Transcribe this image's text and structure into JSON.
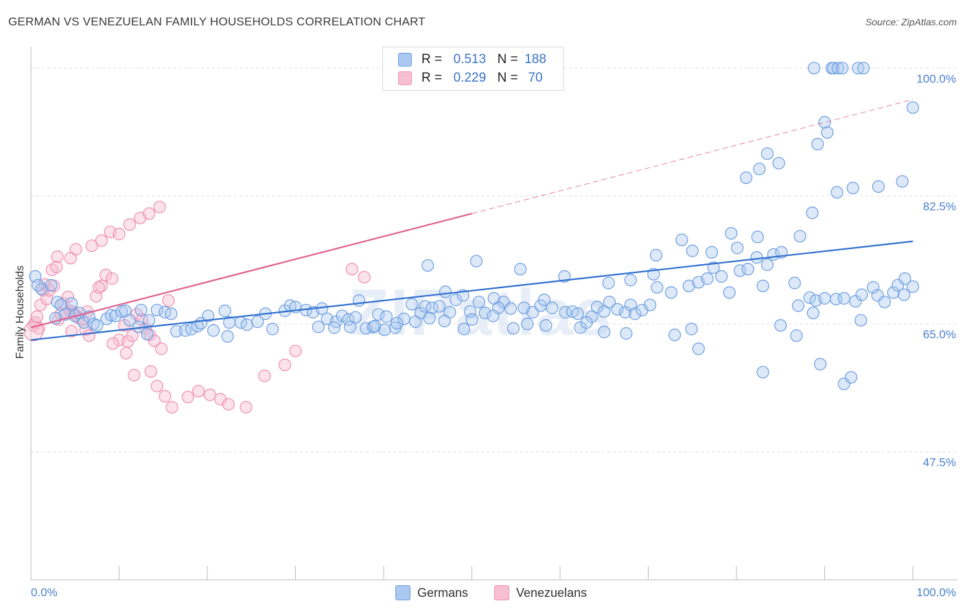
{
  "title": "GERMAN VS VENEZUELAN FAMILY HOUSEHOLDS CORRELATION CHART",
  "source": "Source: ZipAtlas.com",
  "watermark": "ZIPatlas",
  "legend": {
    "german": {
      "r_label": "R =",
      "r_value": "0.513",
      "n_label": "N =",
      "n_value": "188"
    },
    "venezuelan": {
      "r_label": "R =",
      "r_value": "0.229",
      "n_label": "N =",
      "n_value": "70"
    }
  },
  "colors": {
    "german": "#6b9de0",
    "german_fill": "#aac8f0",
    "german_line": "#2f6fd0",
    "venezuelan": "#f08db0",
    "venezuelan_fill": "#f6bfd2",
    "venezuelan_line": "#e0608c",
    "tick": "#4a7fcf"
  },
  "chart_data": {
    "type": "scatter",
    "title": "GERMAN VS VENEZUELAN FAMILY HOUSEHOLDS CORRELATION CHART",
    "xlabel": "",
    "ylabel": "Family Households",
    "xlim": [
      0,
      100
    ],
    "ylim": [
      30,
      102
    ],
    "x_tick_labels": [
      "0.0%",
      "100.0%"
    ],
    "y_ticks": [
      47.5,
      65.0,
      82.5,
      100.0
    ],
    "y_tick_labels": [
      "47.5%",
      "65.0%",
      "82.5%",
      "100.0%"
    ],
    "grid": true,
    "legend_position": "top-center",
    "series": [
      {
        "name": "Germans",
        "r": 0.513,
        "n": 188,
        "trend": {
          "x0": 0,
          "y0": 62.8,
          "x1": 100,
          "y1": 76.3
        },
        "points": [
          [
            0.5,
            71.5
          ],
          [
            0.8,
            70.3
          ],
          [
            1.2,
            69.8
          ],
          [
            2.3,
            70.3
          ],
          [
            3.0,
            68.0
          ],
          [
            2.8,
            65.8
          ],
          [
            3.4,
            67.6
          ],
          [
            3.9,
            66.3
          ],
          [
            4.6,
            67.8
          ],
          [
            5.0,
            66.1
          ],
          [
            5.5,
            66.5
          ],
          [
            6.0,
            65.2
          ],
          [
            6.6,
            66.0
          ],
          [
            7.1,
            65.0
          ],
          [
            7.5,
            64.8
          ],
          [
            8.6,
            65.7
          ],
          [
            9.1,
            66.2
          ],
          [
            9.6,
            66.1
          ],
          [
            10.3,
            66.7
          ],
          [
            10.7,
            66.8
          ],
          [
            11.2,
            65.5
          ],
          [
            12.5,
            66.9
          ],
          [
            12.2,
            64.6
          ],
          [
            13.4,
            65.5
          ],
          [
            14.3,
            66.9
          ],
          [
            13.2,
            63.6
          ],
          [
            15.2,
            66.6
          ],
          [
            15.9,
            66.4
          ],
          [
            16.5,
            64.0
          ],
          [
            17.5,
            64.1
          ],
          [
            18.2,
            64.3
          ],
          [
            18.9,
            64.7
          ],
          [
            19.3,
            65.1
          ],
          [
            20.1,
            66.1
          ],
          [
            20.7,
            64.1
          ],
          [
            22.0,
            66.8
          ],
          [
            22.5,
            65.2
          ],
          [
            22.3,
            63.3
          ],
          [
            23.8,
            65.2
          ],
          [
            24.5,
            64.9
          ],
          [
            25.7,
            65.3
          ],
          [
            26.6,
            66.4
          ],
          [
            27.4,
            64.3
          ],
          [
            28.8,
            66.8
          ],
          [
            29.4,
            67.5
          ],
          [
            30.0,
            67.3
          ],
          [
            31.2,
            66.9
          ],
          [
            32.0,
            66.6
          ],
          [
            33.0,
            67.1
          ],
          [
            33.6,
            65.7
          ],
          [
            34.6,
            65.3
          ],
          [
            35.3,
            66.1
          ],
          [
            36.0,
            65.6
          ],
          [
            36.8,
            65.9
          ],
          [
            37.2,
            68.2
          ],
          [
            38.0,
            64.4
          ],
          [
            38.8,
            64.6
          ],
          [
            39.4,
            66.3
          ],
          [
            40.3,
            66.0
          ],
          [
            41.3,
            64.5
          ],
          [
            42.3,
            65.7
          ],
          [
            43.2,
            67.7
          ],
          [
            44.2,
            66.5
          ],
          [
            44.7,
            67.4
          ],
          [
            45.5,
            67.2
          ],
          [
            46.3,
            67.4
          ],
          [
            47.0,
            69.4
          ],
          [
            47.5,
            66.6
          ],
          [
            48.2,
            68.3
          ],
          [
            49.0,
            68.9
          ],
          [
            49.8,
            66.7
          ],
          [
            50.8,
            68.0
          ],
          [
            51.5,
            66.5
          ],
          [
            52.5,
            68.5
          ],
          [
            53.6,
            68.0
          ],
          [
            53.0,
            67.2
          ],
          [
            54.4,
            67.1
          ],
          [
            55.9,
            67.2
          ],
          [
            56.9,
            66.6
          ],
          [
            57.8,
            67.5
          ],
          [
            58.2,
            68.3
          ],
          [
            59.1,
            67.2
          ],
          [
            60.6,
            66.6
          ],
          [
            61.4,
            66.7
          ],
          [
            62.0,
            66.4
          ],
          [
            62.3,
            64.5
          ],
          [
            63.6,
            66.0
          ],
          [
            64.2,
            67.3
          ],
          [
            65.0,
            66.7
          ],
          [
            65.6,
            68.0
          ],
          [
            66.5,
            67.0
          ],
          [
            67.4,
            66.6
          ],
          [
            68.0,
            67.6
          ],
          [
            68.5,
            66.4
          ],
          [
            69.3,
            66.9
          ],
          [
            70.2,
            67.6
          ],
          [
            71.0,
            70.0
          ],
          [
            72.6,
            69.3
          ],
          [
            74.6,
            70.2
          ],
          [
            75.7,
            70.7
          ],
          [
            76.7,
            71.2
          ],
          [
            77.4,
            72.7
          ],
          [
            78.3,
            71.5
          ],
          [
            79.2,
            69.3
          ],
          [
            80.4,
            72.3
          ],
          [
            81.3,
            72.5
          ],
          [
            82.3,
            74.1
          ],
          [
            83.0,
            70.2
          ],
          [
            83.5,
            73.1
          ],
          [
            84.2,
            74.5
          ],
          [
            85.1,
            74.8
          ],
          [
            86.6,
            70.6
          ],
          [
            87.0,
            67.5
          ],
          [
            88.3,
            68.6
          ],
          [
            89.0,
            68.2
          ],
          [
            88.7,
            66.5
          ],
          [
            90.0,
            68.5
          ],
          [
            91.3,
            68.4
          ],
          [
            92.2,
            68.5
          ],
          [
            93.5,
            68.1
          ],
          [
            94.2,
            69.0
          ],
          [
            95.5,
            70.0
          ],
          [
            96.0,
            68.9
          ],
          [
            96.8,
            68.0
          ],
          [
            97.8,
            69.3
          ],
          [
            99.0,
            69.0
          ],
          [
            100.0,
            70.1
          ],
          [
            45.0,
            73.0
          ],
          [
            50.5,
            73.6
          ],
          [
            55.5,
            72.5
          ],
          [
            60.5,
            71.5
          ],
          [
            65.5,
            70.6
          ],
          [
            70.6,
            71.8
          ],
          [
            75.0,
            75.0
          ],
          [
            68.0,
            71.0
          ],
          [
            73.8,
            76.5
          ],
          [
            77.2,
            74.8
          ],
          [
            79.4,
            77.4
          ],
          [
            82.4,
            76.9
          ],
          [
            87.2,
            77.0
          ],
          [
            80.1,
            75.4
          ],
          [
            70.9,
            74.4
          ],
          [
            88.6,
            80.2
          ],
          [
            91.4,
            83.0
          ],
          [
            93.2,
            83.6
          ],
          [
            96.1,
            83.8
          ],
          [
            98.8,
            84.5
          ],
          [
            82.6,
            86.2
          ],
          [
            81.1,
            85.0
          ],
          [
            84.8,
            87.0
          ],
          [
            83.5,
            88.3
          ],
          [
            89.2,
            89.6
          ],
          [
            90.3,
            91.2
          ],
          [
            90.0,
            92.6
          ],
          [
            100.0,
            94.6
          ],
          [
            88.8,
            100.0
          ],
          [
            90.8,
            100.0
          ],
          [
            91.0,
            100.0
          ],
          [
            91.5,
            100.0
          ],
          [
            92.0,
            100.0
          ],
          [
            93.8,
            100.0
          ],
          [
            94.4,
            100.0
          ],
          [
            98.3,
            70.3
          ],
          [
            99.1,
            71.2
          ],
          [
            94.1,
            65.5
          ],
          [
            85.0,
            64.8
          ],
          [
            86.8,
            63.4
          ],
          [
            89.5,
            59.5
          ],
          [
            92.2,
            56.8
          ],
          [
            93.0,
            57.7
          ],
          [
            83.0,
            58.4
          ],
          [
            75.7,
            61.6
          ],
          [
            74.9,
            64.3
          ],
          [
            73.0,
            63.5
          ],
          [
            67.5,
            63.7
          ],
          [
            65.0,
            63.9
          ],
          [
            63.0,
            65.2
          ],
          [
            58.4,
            64.8
          ],
          [
            56.3,
            65.0
          ],
          [
            54.7,
            64.4
          ],
          [
            52.4,
            66.1
          ],
          [
            50.0,
            65.6
          ],
          [
            49.1,
            64.3
          ],
          [
            46.9,
            65.4
          ],
          [
            45.2,
            65.8
          ],
          [
            43.6,
            65.3
          ],
          [
            41.5,
            65.1
          ],
          [
            40.1,
            64.2
          ],
          [
            39.0,
            64.7
          ],
          [
            36.2,
            64.6
          ],
          [
            34.4,
            64.5
          ],
          [
            32.6,
            64.6
          ]
        ]
      },
      {
        "name": "Venezuelans",
        "r": 0.229,
        "n": 70,
        "trend": {
          "x0": 0,
          "y0": 64.5,
          "x1": 100,
          "y1": 95.7
        },
        "points": [
          [
            0.3,
            64.8
          ],
          [
            0.5,
            65.2
          ],
          [
            0.7,
            66.0
          ],
          [
            0.9,
            64.4
          ],
          [
            1.1,
            67.6
          ],
          [
            1.4,
            69.6
          ],
          [
            1.6,
            70.4
          ],
          [
            1.8,
            68.4
          ],
          [
            2.1,
            69.6
          ],
          [
            2.4,
            72.4
          ],
          [
            2.6,
            70.2
          ],
          [
            2.9,
            72.8
          ],
          [
            3.1,
            65.6
          ],
          [
            3.4,
            66.4
          ],
          [
            3.7,
            67.8
          ],
          [
            4.2,
            68.7
          ],
          [
            4.4,
            66.8
          ],
          [
            4.6,
            64.0
          ],
          [
            4.8,
            66.6
          ],
          [
            5.0,
            66.3
          ],
          [
            5.4,
            65.8
          ],
          [
            5.8,
            65.6
          ],
          [
            6.2,
            64.2
          ],
          [
            6.6,
            63.4
          ],
          [
            7.4,
            68.8
          ],
          [
            8.0,
            70.2
          ],
          [
            8.5,
            71.7
          ],
          [
            9.2,
            71.2
          ],
          [
            10.0,
            62.8
          ],
          [
            10.6,
            64.8
          ],
          [
            11.0,
            62.6
          ],
          [
            11.5,
            63.4
          ],
          [
            12.0,
            66.3
          ],
          [
            12.6,
            65.6
          ],
          [
            13.0,
            64.4
          ],
          [
            13.5,
            63.5
          ],
          [
            14.0,
            62.7
          ],
          [
            14.8,
            61.6
          ],
          [
            15.6,
            68.2
          ],
          [
            3.0,
            74.2
          ],
          [
            5.1,
            75.2
          ],
          [
            6.9,
            75.7
          ],
          [
            8.0,
            76.4
          ],
          [
            9.0,
            77.6
          ],
          [
            10.0,
            77.3
          ],
          [
            11.2,
            78.6
          ],
          [
            12.4,
            79.5
          ],
          [
            13.4,
            80.1
          ],
          [
            14.6,
            81.0
          ],
          [
            4.5,
            74.0
          ],
          [
            6.4,
            66.7
          ],
          [
            7.7,
            70.0
          ],
          [
            9.3,
            62.3
          ],
          [
            10.8,
            61.0
          ],
          [
            11.7,
            58.0
          ],
          [
            13.6,
            58.5
          ],
          [
            14.3,
            56.5
          ],
          [
            15.2,
            55.1
          ],
          [
            16.0,
            53.6
          ],
          [
            17.8,
            55.0
          ],
          [
            19.0,
            55.8
          ],
          [
            20.3,
            55.3
          ],
          [
            21.5,
            54.7
          ],
          [
            22.4,
            54.0
          ],
          [
            24.4,
            53.6
          ],
          [
            26.5,
            57.9
          ],
          [
            28.8,
            59.4
          ],
          [
            30.0,
            61.3
          ],
          [
            36.4,
            72.5
          ],
          [
            37.8,
            71.4
          ]
        ]
      }
    ]
  }
}
